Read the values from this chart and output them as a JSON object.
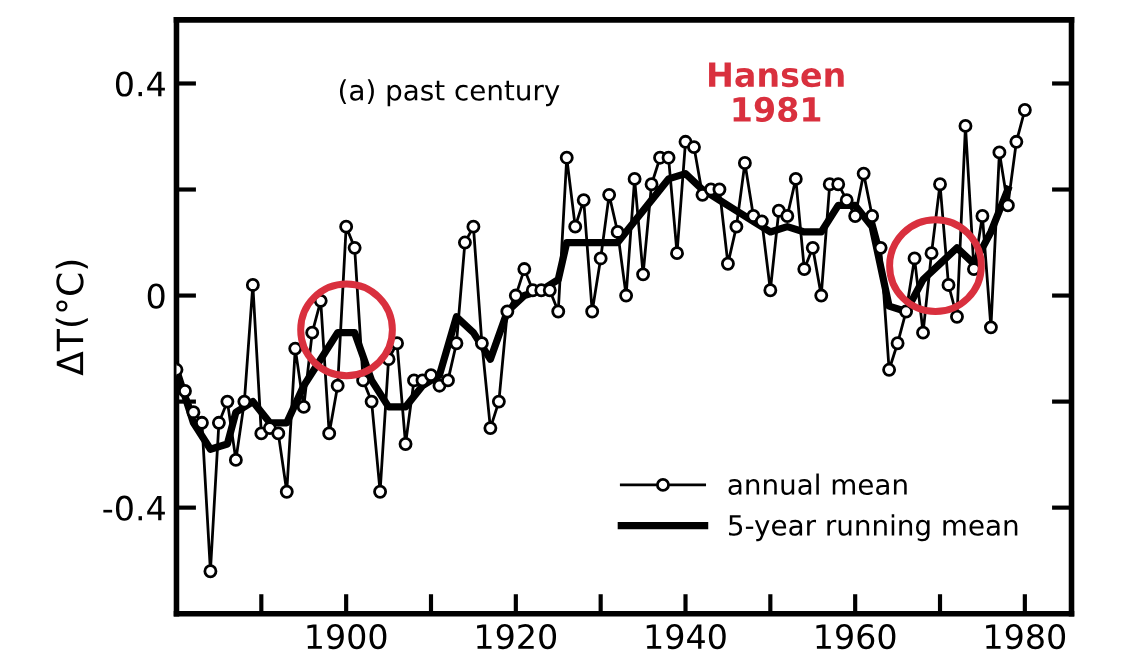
{
  "chart_data": {
    "type": "line",
    "ylabel": "ΔT(°C)",
    "annotations": [
      "(a) past century",
      "Hansen\n1981"
    ],
    "xlim": [
      1880,
      1985.5
    ],
    "xticks": [
      {
        "value": 1890,
        "label": null
      },
      1900,
      {
        "value": 1910,
        "label": null
      },
      1920,
      {
        "value": 1930,
        "label": null
      },
      1940,
      {
        "value": 1950,
        "label": null
      },
      1960,
      {
        "value": 1970,
        "label": null
      },
      1980
    ],
    "ylim": [
      -0.6,
      0.52
    ],
    "yticks": [
      {
        "value": -0.4,
        "label": "-0.4"
      },
      {
        "value": -0.2,
        "label": null
      },
      0,
      {
        "value": 0.2,
        "label": null
      },
      0.4
    ],
    "grid": false,
    "legend": "bottom right",
    "series": [
      {
        "name": "annual mean",
        "color": "#000000",
        "marker": "circle",
        "x": [
          1880,
          1881,
          1882,
          1883,
          1884,
          1885,
          1886,
          1887,
          1888,
          1889,
          1890,
          1891,
          1892,
          1893,
          1894,
          1895,
          1896,
          1897,
          1898,
          1899,
          1900,
          1901,
          1902,
          1903,
          1904,
          1905,
          1906,
          1907,
          1908,
          1909,
          1910,
          1911,
          1912,
          1913,
          1914,
          1915,
          1916,
          1917,
          1918,
          1919,
          1920,
          1921,
          1922,
          1923,
          1924,
          1925,
          1926,
          1927,
          1928,
          1929,
          1930,
          1931,
          1932,
          1933,
          1934,
          1935,
          1936,
          1937,
          1938,
          1939,
          1940,
          1941,
          1942,
          1943,
          1944,
          1945,
          1946,
          1947,
          1948,
          1949,
          1950,
          1951,
          1952,
          1953,
          1954,
          1955,
          1956,
          1957,
          1958,
          1959,
          1960,
          1961,
          1962,
          1963,
          1964,
          1965,
          1966,
          1967,
          1968,
          1969,
          1970,
          1971,
          1972,
          1973,
          1974,
          1975,
          1976,
          1977,
          1978,
          1979,
          1980
        ],
        "values": [
          -0.14,
          -0.18,
          -0.22,
          -0.24,
          -0.52,
          -0.24,
          -0.2,
          -0.31,
          -0.2,
          0.02,
          -0.26,
          -0.25,
          -0.26,
          -0.37,
          -0.1,
          -0.21,
          -0.07,
          -0.01,
          -0.26,
          -0.17,
          0.13,
          0.09,
          -0.16,
          -0.2,
          -0.37,
          -0.12,
          -0.09,
          -0.28,
          -0.16,
          -0.16,
          -0.15,
          -0.17,
          -0.16,
          -0.09,
          0.1,
          0.13,
          -0.09,
          -0.25,
          -0.2,
          -0.03,
          0.0,
          0.05,
          0.01,
          0.01,
          0.01,
          -0.03,
          0.26,
          0.13,
          0.18,
          -0.03,
          0.07,
          0.19,
          0.12,
          0.0,
          0.22,
          0.04,
          0.21,
          0.26,
          0.26,
          0.08,
          0.29,
          0.28,
          0.19,
          0.2,
          0.2,
          0.06,
          0.13,
          0.25,
          0.15,
          0.14,
          0.01,
          0.16,
          0.15,
          0.22,
          0.05,
          0.09,
          0.0,
          0.21,
          0.21,
          0.18,
          0.15,
          0.23,
          0.15,
          0.09,
          -0.14,
          -0.09,
          -0.03,
          0.07,
          -0.07,
          0.08,
          0.21,
          0.02,
          -0.04,
          0.32,
          0.05,
          0.15,
          -0.06,
          0.27,
          0.17,
          0.29,
          0.35
        ]
      },
      {
        "name": "5-year running mean",
        "color": "#000000",
        "marker": "none",
        "x": [
          1880,
          1882,
          1884,
          1886,
          1887,
          1889,
          1891,
          1893,
          1895,
          1897,
          1899,
          1901,
          1903,
          1905,
          1907,
          1909,
          1911,
          1913,
          1915,
          1917,
          1919,
          1921,
          1923,
          1925,
          1926,
          1928,
          1930,
          1932,
          1934,
          1936,
          1938,
          1940,
          1942,
          1944,
          1946,
          1948,
          1950,
          1952,
          1954,
          1956,
          1958,
          1960,
          1962,
          1964,
          1966,
          1968,
          1970,
          1972,
          1974,
          1976,
          1978
        ],
        "values": [
          -0.14,
          -0.24,
          -0.29,
          -0.28,
          -0.22,
          -0.2,
          -0.24,
          -0.24,
          -0.17,
          -0.12,
          -0.07,
          -0.07,
          -0.16,
          -0.21,
          -0.21,
          -0.17,
          -0.15,
          -0.04,
          -0.07,
          -0.12,
          -0.03,
          0.0,
          0.01,
          0.03,
          0.1,
          0.1,
          0.1,
          0.1,
          0.14,
          0.18,
          0.22,
          0.23,
          0.2,
          0.18,
          0.16,
          0.14,
          0.12,
          0.13,
          0.12,
          0.12,
          0.17,
          0.17,
          0.13,
          -0.02,
          -0.03,
          0.03,
          0.06,
          0.09,
          0.06,
          0.12,
          0.2
        ]
      }
    ]
  }
}
